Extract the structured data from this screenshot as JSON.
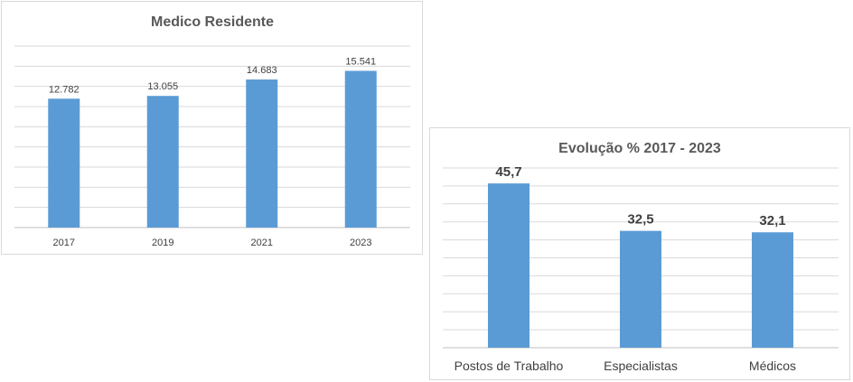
{
  "chart_data": [
    {
      "type": "bar",
      "title": "Medico Residente",
      "categories": [
        "2017",
        "2019",
        "2021",
        "2023"
      ],
      "values": [
        12782,
        13055,
        14683,
        15541
      ],
      "data_labels": [
        "12.782",
        "13.055",
        "14.683",
        "15.541"
      ],
      "ylim": [
        0,
        18000
      ],
      "grid": true,
      "bar_color": "#5b9bd5"
    },
    {
      "type": "bar",
      "title": "Evolução % 2017 - 2023",
      "categories": [
        "Postos de Trabalho",
        "Especialistas",
        "Médicos"
      ],
      "values": [
        45.7,
        32.5,
        32.1
      ],
      "data_labels": [
        "45,7",
        "32,5",
        "32,1"
      ],
      "ylim": [
        0,
        50
      ],
      "grid": true,
      "bar_color": "#5b9bd5"
    }
  ]
}
